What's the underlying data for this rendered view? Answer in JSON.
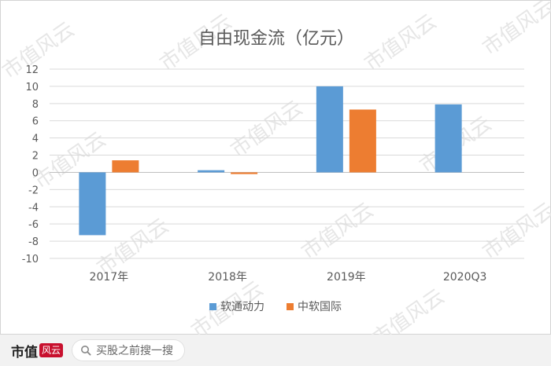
{
  "chart_data": {
    "type": "bar",
    "title": "自由现金流（亿元）",
    "categories": [
      "2017年",
      "2018年",
      "2019年",
      "2020Q3"
    ],
    "series": [
      {
        "name": "软通动力",
        "color": "#5b9bd5",
        "values": [
          -7.3,
          0.25,
          10.0,
          7.9
        ]
      },
      {
        "name": "中软国际",
        "color": "#ed7d31",
        "values": [
          1.4,
          -0.2,
          7.3,
          null
        ]
      }
    ],
    "ylim": [
      -10,
      12
    ],
    "yticks": [
      12,
      10,
      8,
      6,
      4,
      2,
      0,
      -2,
      -4,
      -6,
      -8,
      -10
    ],
    "ytick_labels": [
      "12",
      "10",
      "8",
      "6",
      "4",
      "2",
      "0",
      "-2",
      "-4",
      "-6",
      "-8",
      "-10"
    ],
    "grid": true,
    "legend_position": "bottom",
    "xlabel": "",
    "ylabel": ""
  },
  "watermark": {
    "text": "市值风云",
    "color": "#e6e6e6"
  },
  "footer": {
    "brand_text": "市值",
    "brand_mark": "风云",
    "search_text": "买股之前搜一搜"
  }
}
